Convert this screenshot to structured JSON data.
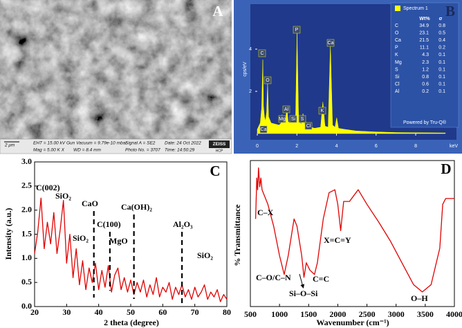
{
  "sem_image": {
    "panel_label": "A",
    "scale_bar": "2 μm",
    "info": [
      "EHT = 15.00 kV",
      "Gun Vacuum = 9.79e-10 mbar",
      "Signal A = SE2",
      "Date: 24 Oct 2022",
      "Mag =   5.00 K X",
      "WD = 8.4 mm",
      "Photo No. = 3707",
      "Time: 14:50:29"
    ],
    "logo": "ZEISS",
    "logo_sub": "HCP"
  },
  "chart_data": [
    {
      "type": "area",
      "panel_label": "B",
      "y_label": "cps/eV",
      "x_label": "keV",
      "color": "#ffff00",
      "xlim": [
        0,
        9.5
      ],
      "xticks": [
        0,
        2,
        4,
        6,
        8
      ],
      "ylim": [
        0,
        6
      ],
      "yticks": [
        2,
        4
      ],
      "x": [
        0,
        0.15,
        0.22,
        0.28,
        0.31,
        0.36,
        0.42,
        0.47,
        0.52,
        0.57,
        0.7,
        0.9,
        1.1,
        1.2,
        1.25,
        1.3,
        1.42,
        1.49,
        1.56,
        1.68,
        1.74,
        1.8,
        1.93,
        2.01,
        2.09,
        2.22,
        2.31,
        2.4,
        2.55,
        2.62,
        2.7,
        2.9,
        3.2,
        3.31,
        3.42,
        3.58,
        3.69,
        3.8,
        3.93,
        4.01,
        4.1,
        4.4,
        5,
        6,
        7,
        8,
        9.5
      ],
      "values": [
        0.2,
        0.5,
        1.2,
        3.5,
        1.3,
        0.8,
        0.6,
        1.0,
        2.4,
        0.8,
        0.5,
        0.45,
        0.4,
        0.5,
        0.9,
        0.5,
        0.55,
        1.25,
        0.55,
        0.5,
        0.85,
        0.5,
        0.55,
        4.85,
        0.6,
        0.45,
        0.95,
        0.4,
        0.35,
        0.45,
        0.3,
        0.25,
        0.3,
        1.5,
        0.35,
        0.3,
        4.2,
        0.4,
        0.3,
        0.75,
        0.25,
        0.2,
        0.12,
        0.08,
        0.05,
        0.04,
        0.03
      ],
      "peak_labels": [
        "C",
        "O",
        "Ca",
        "Mg",
        "Al",
        "Si",
        "P",
        "S",
        "Cl",
        "K",
        "Ca"
      ],
      "legend": "Spectrum 1",
      "columns": [
        "Wt%",
        "σ"
      ],
      "rows": [
        [
          "C",
          34.9,
          0.8
        ],
        [
          "O",
          23.1,
          0.5
        ],
        [
          "Ca",
          21.5,
          0.4
        ],
        [
          "P",
          11.1,
          0.2
        ],
        [
          "K",
          4.3,
          0.1
        ],
        [
          "Mg",
          2.3,
          0.1
        ],
        [
          "S",
          1.2,
          0.1
        ],
        [
          "Si",
          0.8,
          0.1
        ],
        [
          "Cl",
          0.6,
          0.1
        ],
        [
          "Al",
          0.2,
          0.1
        ]
      ],
      "footer": "Powered by Tru-Q®"
    },
    {
      "type": "line",
      "panel_label": "C",
      "x_label": "2 theta (degree)",
      "y_label": "Intensity (a.u.)",
      "color": "#e00000",
      "xlim": [
        20,
        80
      ],
      "xticks": [
        20,
        30,
        40,
        50,
        60,
        70,
        80
      ],
      "ylim": [
        0,
        3
      ],
      "yticks": [
        {
          "value": 0,
          "label": "0.0"
        },
        0.5,
        {
          "value": 1,
          "label": "1.0"
        },
        1.5,
        {
          "value": 2,
          "label": "2.0"
        },
        2.5,
        {
          "value": 3,
          "label": "3.0"
        }
      ],
      "x": [
        20,
        21,
        22,
        23,
        24,
        25,
        26,
        27,
        28,
        29,
        30,
        31,
        32,
        33,
        34,
        35,
        36,
        37,
        38,
        39,
        40,
        41,
        42,
        43,
        44,
        45,
        46,
        47,
        48,
        49,
        50,
        51,
        52,
        53,
        54,
        55,
        56,
        57,
        58,
        59,
        60,
        61,
        62,
        63,
        64,
        65,
        66,
        67,
        68,
        69,
        70,
        71,
        72,
        73,
        74,
        75,
        76,
        77,
        78,
        79,
        80
      ],
      "values": [
        1.1,
        1.55,
        2.25,
        1.2,
        1.75,
        1.3,
        1.95,
        1.1,
        1.6,
        2.2,
        0.9,
        1.5,
        0.6,
        1.2,
        0.45,
        0.95,
        0.35,
        0.8,
        0.5,
        0.9,
        0.35,
        0.75,
        0.4,
        0.85,
        0.3,
        0.65,
        0.8,
        0.35,
        0.6,
        0.3,
        0.55,
        0.25,
        0.5,
        0.3,
        0.55,
        0.2,
        0.45,
        0.25,
        0.6,
        0.2,
        0.4,
        0.3,
        0.5,
        0.15,
        0.4,
        0.25,
        0.45,
        0.2,
        0.35,
        0.15,
        0.4,
        0.2,
        0.3,
        0.45,
        0.15,
        0.3,
        0.2,
        0.35,
        0.1,
        0.25,
        0.15
      ],
      "reference_lines": [
        38.5,
        43.5,
        51,
        66
      ],
      "annotations": [
        "C(002)",
        "SiO₂",
        "CaO",
        "C(100)",
        "SiO₂",
        "MgO",
        "Ca(OH)₂",
        "Al₂O₃",
        "SiO₂"
      ]
    },
    {
      "type": "line",
      "panel_label": "D",
      "x_label": "Wavenumber (cm⁻¹)",
      "y_label": "% Transmittance",
      "color": "#e00000",
      "xlim": [
        500,
        4000
      ],
      "xticks": [
        500,
        1000,
        1500,
        2000,
        2500,
        3000,
        3500,
        4000
      ],
      "ylim": [
        0,
        100
      ],
      "x": [
        590,
        610,
        625,
        640,
        660,
        680,
        700,
        800,
        900,
        1000,
        1080,
        1150,
        1250,
        1300,
        1380,
        1420,
        1460,
        1520,
        1600,
        1650,
        1750,
        1850,
        1950,
        2000,
        2050,
        2100,
        2200,
        2350,
        2500,
        2700,
        2900,
        3100,
        3300,
        3450,
        3600,
        3750,
        3800,
        3850,
        4000
      ],
      "values": [
        60,
        88,
        80,
        95,
        82,
        88,
        80,
        70,
        55,
        35,
        22,
        35,
        60,
        55,
        35,
        20,
        30,
        25,
        22,
        30,
        60,
        78,
        80,
        70,
        52,
        72,
        72,
        80,
        70,
        58,
        45,
        30,
        15,
        10,
        15,
        40,
        70,
        74,
        74
      ],
      "annotations": [
        "C–X",
        "C–O/C–N",
        "Si–O–Si",
        "C=C",
        "X=C=Y",
        "O–H"
      ]
    }
  ]
}
